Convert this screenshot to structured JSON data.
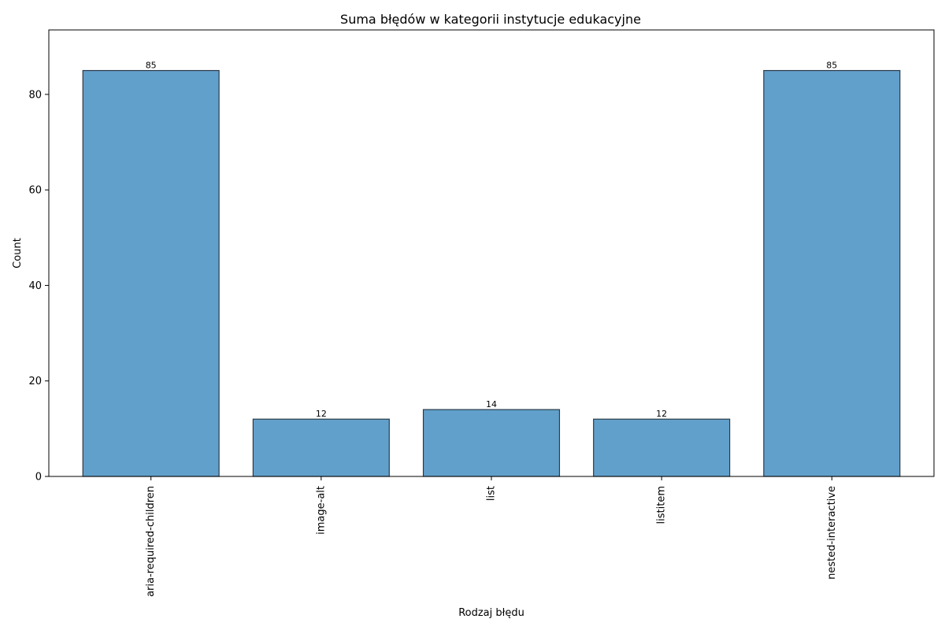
{
  "chart_data": {
    "type": "bar",
    "title": "Suma błędów w kategorii instytucje edukacyjne",
    "xlabel": "Rodzaj błędu",
    "ylabel": "Count",
    "categories": [
      "aria-required-children",
      "image-alt",
      "list",
      "listitem",
      "nested-interactive"
    ],
    "values": [
      85,
      12,
      14,
      12,
      85
    ],
    "ylim": [
      0,
      93.5
    ],
    "yticks": [
      0,
      20,
      40,
      60,
      80
    ],
    "grid": false,
    "legend": "none",
    "bar_color": "#62a0cc",
    "bar_edge_color": "#2b3a47"
  }
}
